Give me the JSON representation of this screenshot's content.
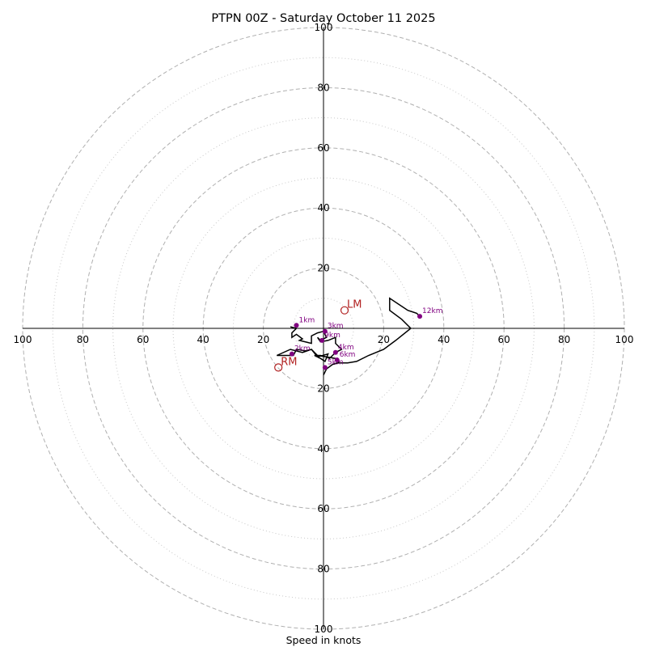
{
  "chart_data": {
    "type": "line",
    "title": "PTPN 00Z - Saturday October 11 2025",
    "xlabel": "Speed in knots",
    "ylabel": "",
    "xlim": [
      -100,
      100
    ],
    "ylim": [
      -100,
      100
    ],
    "grid": true,
    "ring_major": [
      20,
      40,
      60,
      80,
      100
    ],
    "ring_minor": [
      10,
      30,
      50,
      70,
      90
    ],
    "x_tick_labels": [
      "100",
      "80",
      "60",
      "40",
      "20",
      "20",
      "40",
      "60",
      "80",
      "100"
    ],
    "x_tick_values": [
      -100,
      -80,
      -60,
      -40,
      -20,
      20,
      40,
      60,
      80,
      100
    ],
    "y_tick_labels": [
      "100",
      "80",
      "60",
      "40",
      "20",
      "20",
      "40",
      "60",
      "80",
      "100"
    ],
    "y_tick_values": [
      100,
      80,
      60,
      40,
      20,
      -20,
      -40,
      -60,
      -80,
      -100
    ],
    "series": [
      {
        "name": "hodograph",
        "color": "#000000",
        "points": [
          [
            -11,
            0.5
          ],
          [
            -9,
            0
          ],
          [
            -10.5,
            -1.5
          ],
          [
            -10.5,
            -3
          ],
          [
            -9,
            -2
          ],
          [
            -7,
            -3.5
          ],
          [
            -8,
            -4
          ],
          [
            -4,
            -5
          ],
          [
            -4,
            -2.5
          ],
          [
            -2,
            -1.5
          ],
          [
            0,
            -1
          ],
          [
            1,
            -3
          ],
          [
            -1,
            -4
          ],
          [
            -2,
            -3
          ],
          [
            -1,
            -4.5
          ],
          [
            1.5,
            -4
          ],
          [
            4,
            -3
          ],
          [
            4,
            -5
          ],
          [
            6,
            -7
          ],
          [
            4,
            -8
          ],
          [
            3,
            -9
          ],
          [
            2,
            -10
          ],
          [
            1,
            -9.5
          ],
          [
            -1,
            -9
          ],
          [
            -3,
            -9
          ],
          [
            -1,
            -10
          ],
          [
            0.5,
            -11
          ],
          [
            1.5,
            -8.5
          ],
          [
            -2,
            -9.5
          ],
          [
            -4,
            -7
          ],
          [
            -7,
            -8
          ],
          [
            -11,
            -7
          ],
          [
            -15.5,
            -9
          ],
          [
            -10,
            -9
          ],
          [
            -9,
            -7
          ],
          [
            -6,
            -7.5
          ],
          [
            -4,
            -7
          ],
          [
            -3,
            -8
          ],
          [
            -2,
            -9
          ],
          [
            1,
            -9.5
          ],
          [
            4,
            -10
          ],
          [
            5,
            -11
          ],
          [
            5,
            -11.5
          ],
          [
            3,
            -12
          ],
          [
            1,
            -13.5
          ],
          [
            0,
            -15.5
          ],
          [
            1,
            -13.5
          ],
          [
            3,
            -12
          ],
          [
            4.5,
            -11.5
          ],
          [
            8,
            -11.5
          ],
          [
            11,
            -11
          ],
          [
            15,
            -9
          ],
          [
            20,
            -7
          ],
          [
            24,
            -4
          ],
          [
            29,
            0
          ],
          [
            26,
            3
          ],
          [
            22,
            6
          ],
          [
            22,
            10
          ],
          [
            25,
            8
          ],
          [
            28,
            6
          ],
          [
            31,
            5
          ],
          [
            32,
            4
          ]
        ]
      }
    ],
    "height_markers": [
      {
        "label": "1km",
        "u": -9,
        "v": 1
      },
      {
        "label": "2km",
        "u": -10.5,
        "v": -8.5
      },
      {
        "label": "3km",
        "u": 0.5,
        "v": -1
      },
      {
        "label": "4km",
        "u": 4,
        "v": -8
      },
      {
        "label": "5km",
        "u": 0.5,
        "v": -13
      },
      {
        "label": "6km",
        "u": 4.5,
        "v": -10.5
      },
      {
        "label": "9km",
        "u": -0.5,
        "v": -4
      },
      {
        "label": "12km",
        "u": 32,
        "v": 4
      }
    ],
    "storm_motion": [
      {
        "label": "LM",
        "u": 7,
        "v": 6
      },
      {
        "label": "RM",
        "u": -15,
        "v": -13
      }
    ],
    "colors": {
      "marker": "#800080",
      "storm": "#b22222",
      "grid": "#b0b0b0",
      "line": "#000000"
    }
  }
}
